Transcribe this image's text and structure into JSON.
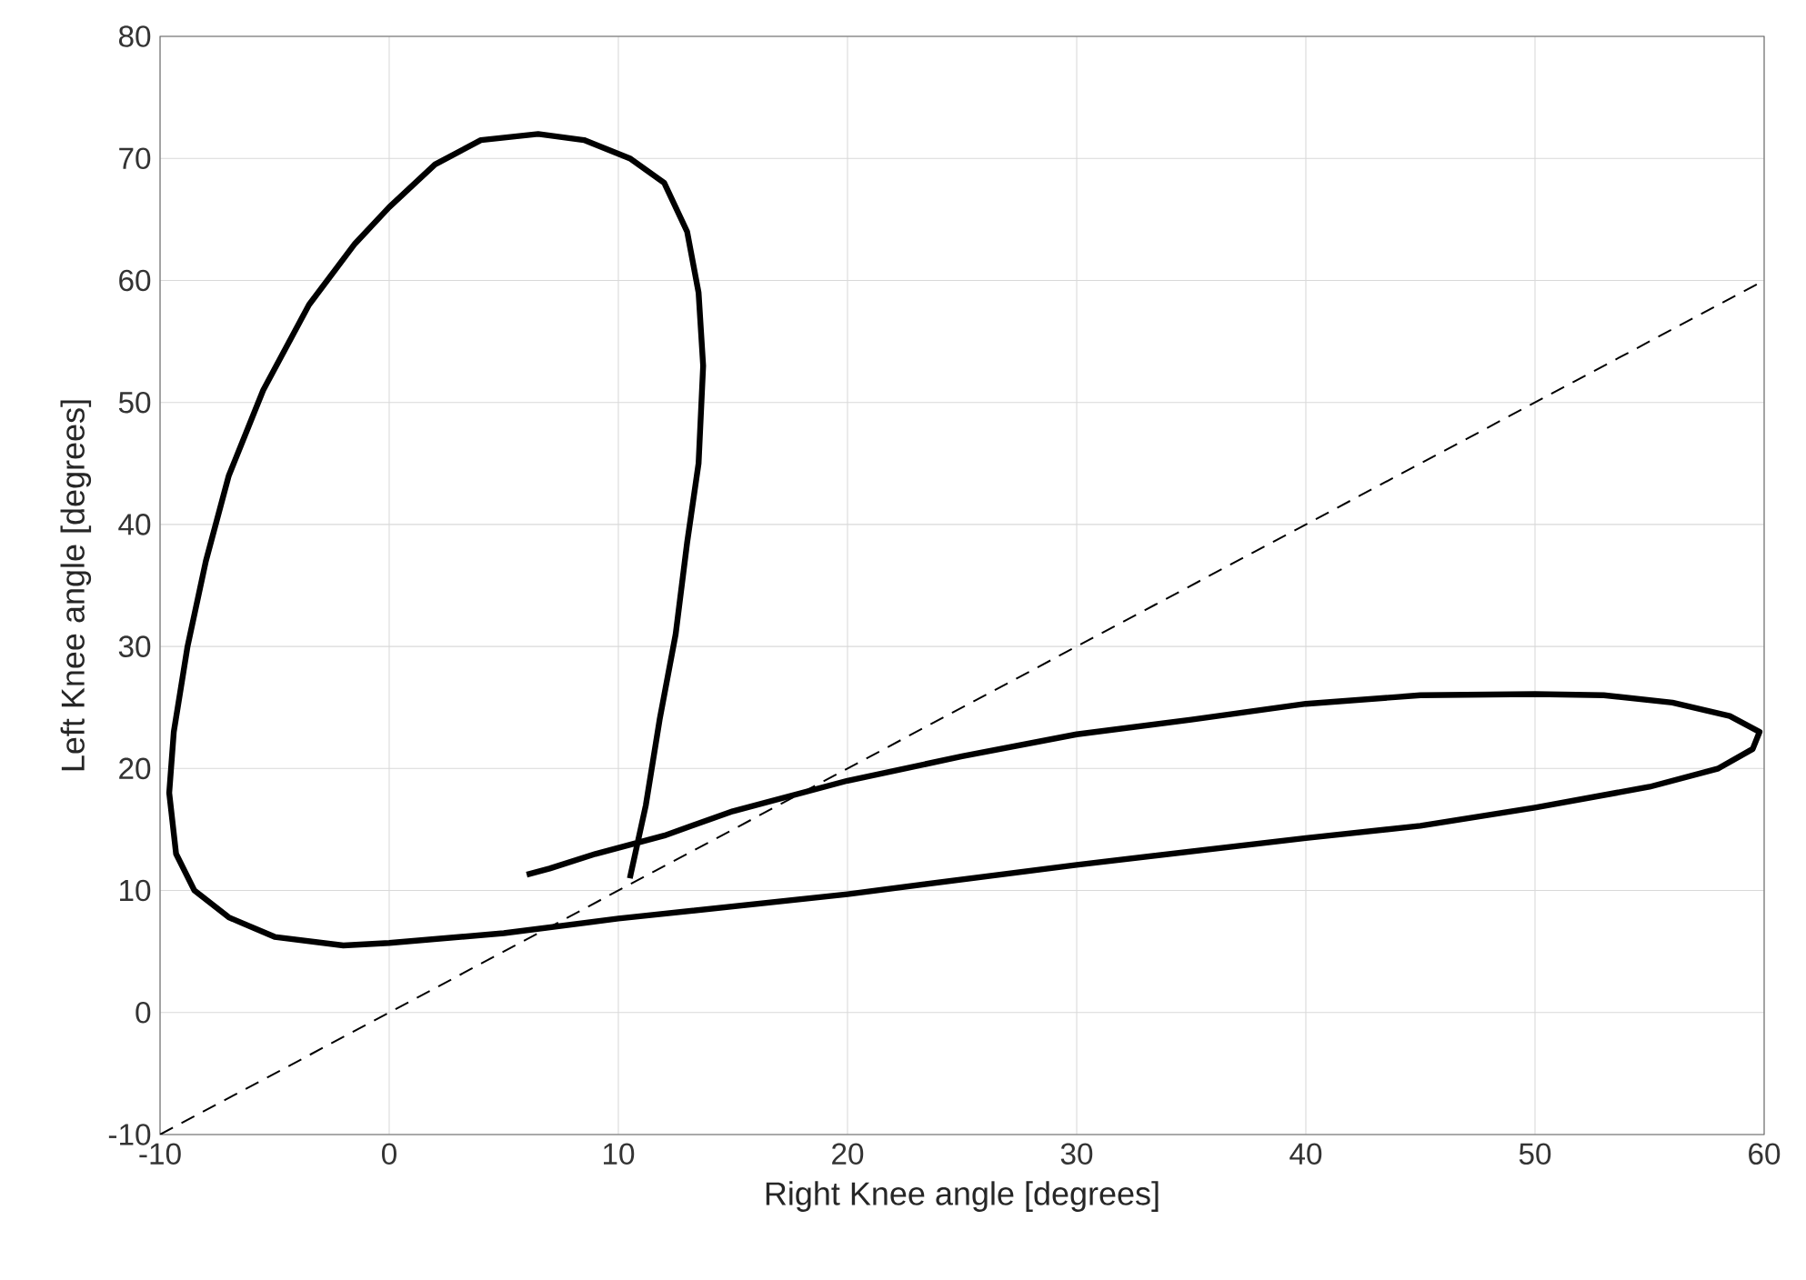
{
  "chart_data": {
    "type": "line",
    "xlabel": "Right Knee angle [degrees]",
    "ylabel": "Left Knee angle [degrees]",
    "xlim": [
      -10,
      60
    ],
    "ylim": [
      -10,
      80
    ],
    "xticks": [
      -10,
      0,
      10,
      20,
      30,
      40,
      50,
      60
    ],
    "yticks": [
      -10,
      0,
      10,
      20,
      30,
      40,
      50,
      60,
      70,
      80
    ],
    "grid": true,
    "series": [
      {
        "color": "#000000",
        "line_style": "solid",
        "x": [
          6,
          7,
          9,
          12,
          15,
          20,
          25,
          30,
          35,
          40,
          45,
          50,
          53,
          56,
          58.5,
          59.8,
          59.5,
          58,
          55,
          50,
          45,
          40,
          30,
          20,
          10,
          5,
          0,
          -2,
          -5,
          -7,
          -8.5,
          -9.3,
          -9.6,
          -9.4,
          -8.8,
          -8,
          -7,
          -5.5,
          -3.5,
          -1.5,
          0,
          2,
          4,
          6.5,
          8.5,
          10.5,
          12,
          13,
          13.5,
          13.7,
          13.5,
          13,
          12.5,
          11.8,
          11.2,
          10.5
        ],
        "values": [
          11.3,
          11.8,
          13,
          14.5,
          16.5,
          19,
          21,
          22.8,
          24,
          25.3,
          26,
          26.1,
          26,
          25.4,
          24.3,
          23,
          21.6,
          20,
          18.5,
          16.8,
          15.3,
          14.3,
          12.1,
          9.7,
          7.7,
          6.5,
          5.7,
          5.5,
          6.2,
          7.8,
          10,
          13,
          18,
          23,
          30,
          37,
          44,
          51,
          58,
          63,
          66,
          69.5,
          71.5,
          72,
          71.5,
          70,
          68,
          64,
          59,
          53,
          45,
          38.5,
          31,
          24,
          17,
          11
        ]
      },
      {
        "color": "#000000",
        "line_style": "dashed",
        "x": [
          -10,
          60
        ],
        "values": [
          -10,
          60
        ]
      }
    ]
  }
}
